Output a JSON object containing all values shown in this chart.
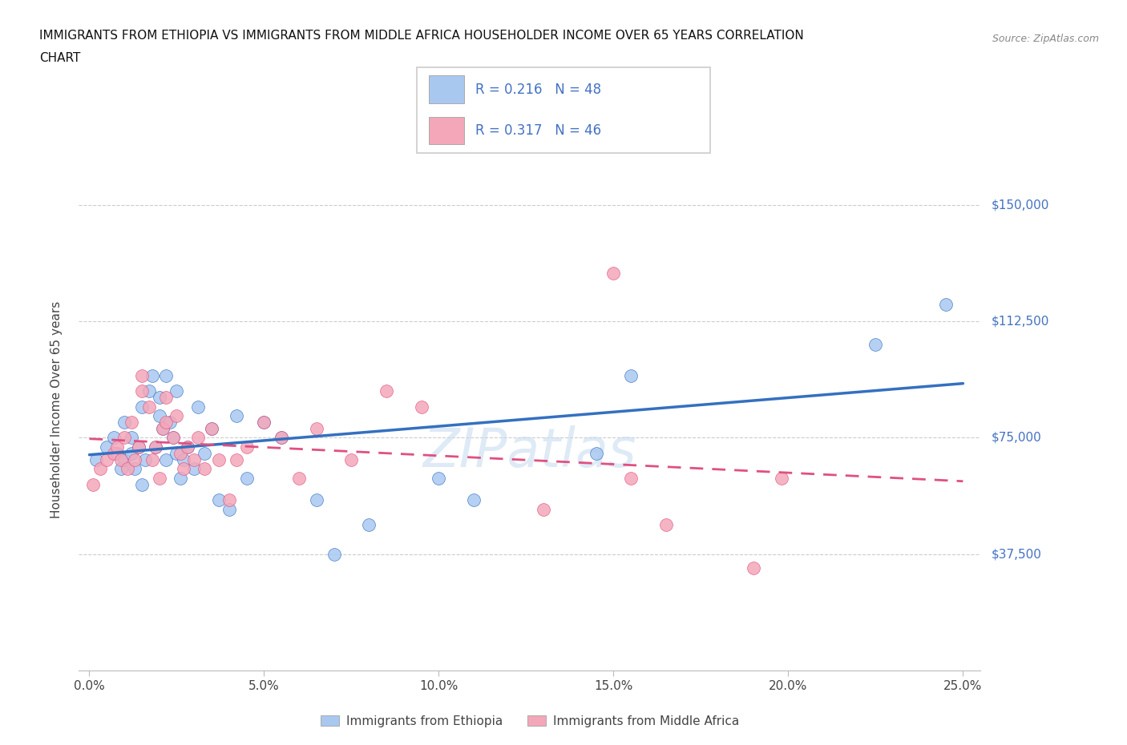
{
  "title_line1": "IMMIGRANTS FROM ETHIOPIA VS IMMIGRANTS FROM MIDDLE AFRICA HOUSEHOLDER INCOME OVER 65 YEARS CORRELATION",
  "title_line2": "CHART",
  "source": "Source: ZipAtlas.com",
  "ylabel": "Householder Income Over 65 years",
  "xlabel_ticks": [
    "0.0%",
    "5.0%",
    "10.0%",
    "15.0%",
    "20.0%",
    "25.0%"
  ],
  "xlabel_vals": [
    0.0,
    0.05,
    0.1,
    0.15,
    0.2,
    0.25
  ],
  "ytick_labels": [
    "$37,500",
    "$75,000",
    "$112,500",
    "$150,000"
  ],
  "ytick_vals": [
    37500,
    75000,
    112500,
    150000
  ],
  "xlim": [
    -0.003,
    0.255
  ],
  "ylim": [
    0,
    168000
  ],
  "ethiopia_R": 0.216,
  "ethiopia_N": 48,
  "middleafrica_R": 0.317,
  "middleafrica_N": 46,
  "ethiopia_color": "#a8c8f0",
  "middleafrica_color": "#f4a7b9",
  "ethiopia_line_color": "#3470c0",
  "middleafrica_line_color": "#e05080",
  "legend_text_color": "#4472c4",
  "watermark_color": "#c8ddf0",
  "ethiopia_x": [
    0.002,
    0.005,
    0.007,
    0.008,
    0.009,
    0.01,
    0.01,
    0.012,
    0.012,
    0.013,
    0.014,
    0.015,
    0.015,
    0.016,
    0.017,
    0.018,
    0.019,
    0.02,
    0.02,
    0.021,
    0.022,
    0.022,
    0.023,
    0.024,
    0.025,
    0.025,
    0.026,
    0.027,
    0.028,
    0.03,
    0.031,
    0.033,
    0.035,
    0.037,
    0.04,
    0.042,
    0.045,
    0.05,
    0.055,
    0.065,
    0.07,
    0.08,
    0.1,
    0.11,
    0.145,
    0.155,
    0.225,
    0.245
  ],
  "ethiopia_y": [
    68000,
    72000,
    75000,
    70000,
    65000,
    80000,
    68000,
    75000,
    70000,
    65000,
    72000,
    60000,
    85000,
    68000,
    90000,
    95000,
    72000,
    82000,
    88000,
    78000,
    68000,
    95000,
    80000,
    75000,
    70000,
    90000,
    62000,
    68000,
    72000,
    65000,
    85000,
    70000,
    78000,
    55000,
    52000,
    82000,
    62000,
    80000,
    75000,
    55000,
    37500,
    47000,
    62000,
    55000,
    70000,
    95000,
    105000,
    118000
  ],
  "middleafrica_x": [
    0.001,
    0.003,
    0.005,
    0.007,
    0.008,
    0.009,
    0.01,
    0.011,
    0.012,
    0.013,
    0.014,
    0.015,
    0.015,
    0.017,
    0.018,
    0.019,
    0.02,
    0.021,
    0.022,
    0.022,
    0.024,
    0.025,
    0.026,
    0.027,
    0.028,
    0.03,
    0.031,
    0.033,
    0.035,
    0.037,
    0.04,
    0.042,
    0.045,
    0.05,
    0.055,
    0.06,
    0.065,
    0.075,
    0.085,
    0.095,
    0.13,
    0.15,
    0.155,
    0.165,
    0.19,
    0.198
  ],
  "middleafrica_y": [
    60000,
    65000,
    68000,
    70000,
    72000,
    68000,
    75000,
    65000,
    80000,
    68000,
    72000,
    90000,
    95000,
    85000,
    68000,
    72000,
    62000,
    78000,
    88000,
    80000,
    75000,
    82000,
    70000,
    65000,
    72000,
    68000,
    75000,
    65000,
    78000,
    68000,
    55000,
    68000,
    72000,
    80000,
    75000,
    62000,
    78000,
    68000,
    90000,
    85000,
    52000,
    128000,
    62000,
    47000,
    33000,
    62000
  ]
}
